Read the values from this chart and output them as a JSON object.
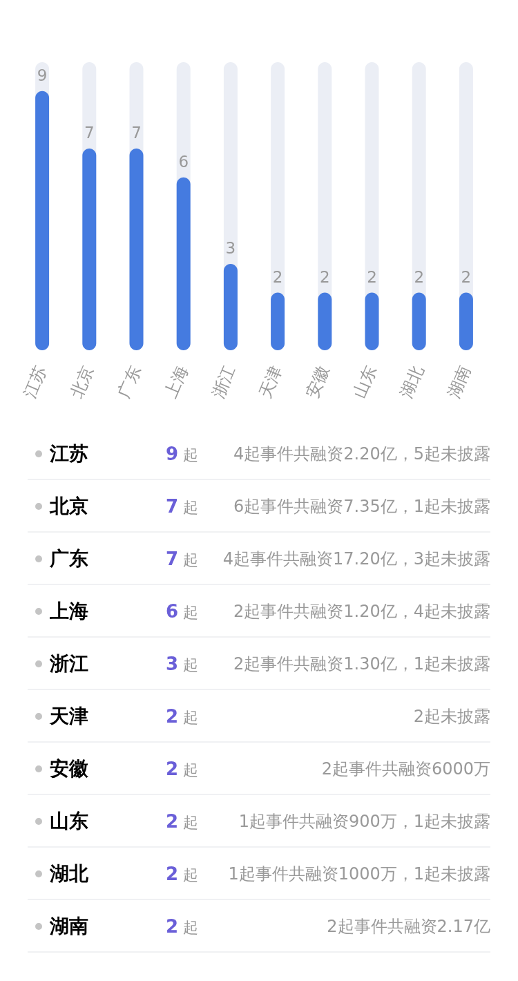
{
  "chart_data": [
    {
      "type": "bar",
      "categories": [
        "江苏",
        "北京",
        "广东",
        "上海",
        "浙江",
        "天津",
        "安徽",
        "山东",
        "湖北",
        "湖南"
      ],
      "values": [
        9,
        7,
        7,
        6,
        3,
        2,
        2,
        2,
        2,
        2
      ],
      "color": "#457be0",
      "ylim": [
        0,
        10
      ],
      "data_labels": true,
      "tick_labels": "x"
    },
    {
      "type": "other",
      "categories": [
        "江苏",
        "北京",
        "广东",
        "上海",
        "浙江",
        "天津",
        "安徽",
        "山东",
        "湖北",
        "湖南"
      ],
      "value_labels": [
        "9 起",
        "7 起",
        "7 起",
        "6 起",
        "3 起",
        "2 起",
        "2 起",
        "2 起",
        "2 起",
        "2 起"
      ],
      "color": "#6a5fd8",
      "annotations": [
        "4起事件共融资2.20亿，5起未披露",
        "6起事件共融资7.35亿，1起未披露",
        "4起事件共融资17.20亿，3起未披露",
        "2起事件共融资1.20亿，4起未披露",
        "2起事件共融资1.30亿，1起未披露",
        "2起未披露",
        "2起事件共融资6000万",
        "1起事件共融资900万，1起未披露",
        "1起事件共融资1000万，1起未披露",
        "2起事件共融资2.17亿"
      ]
    }
  ]
}
